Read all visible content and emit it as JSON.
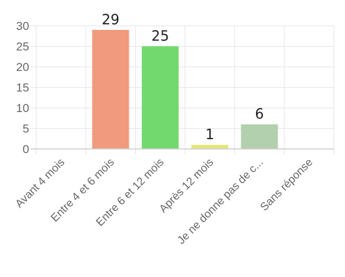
{
  "chart_data": {
    "type": "bar",
    "categories": [
      "Avant 4 mois",
      "Entre 4 et 6 mois",
      "Entre 6 et 12 mois",
      "Après 12 mois",
      "Je ne donne pas de c...",
      "Sans réponse"
    ],
    "values": [
      0,
      29,
      25,
      1,
      6,
      0
    ],
    "data_labels": [
      "",
      "29",
      "25",
      "1",
      "6",
      ""
    ],
    "bar_colors": [
      "#f19a7e",
      "#f19a7e",
      "#72d96f",
      "#e2e67a",
      "#b2cfae",
      "#cccccc"
    ],
    "yticks": [
      0,
      5,
      10,
      15,
      20,
      25,
      30
    ],
    "ylim": [
      0,
      30
    ],
    "grid": true,
    "legend": "none",
    "title": "",
    "xlabel": "",
    "ylabel": ""
  }
}
